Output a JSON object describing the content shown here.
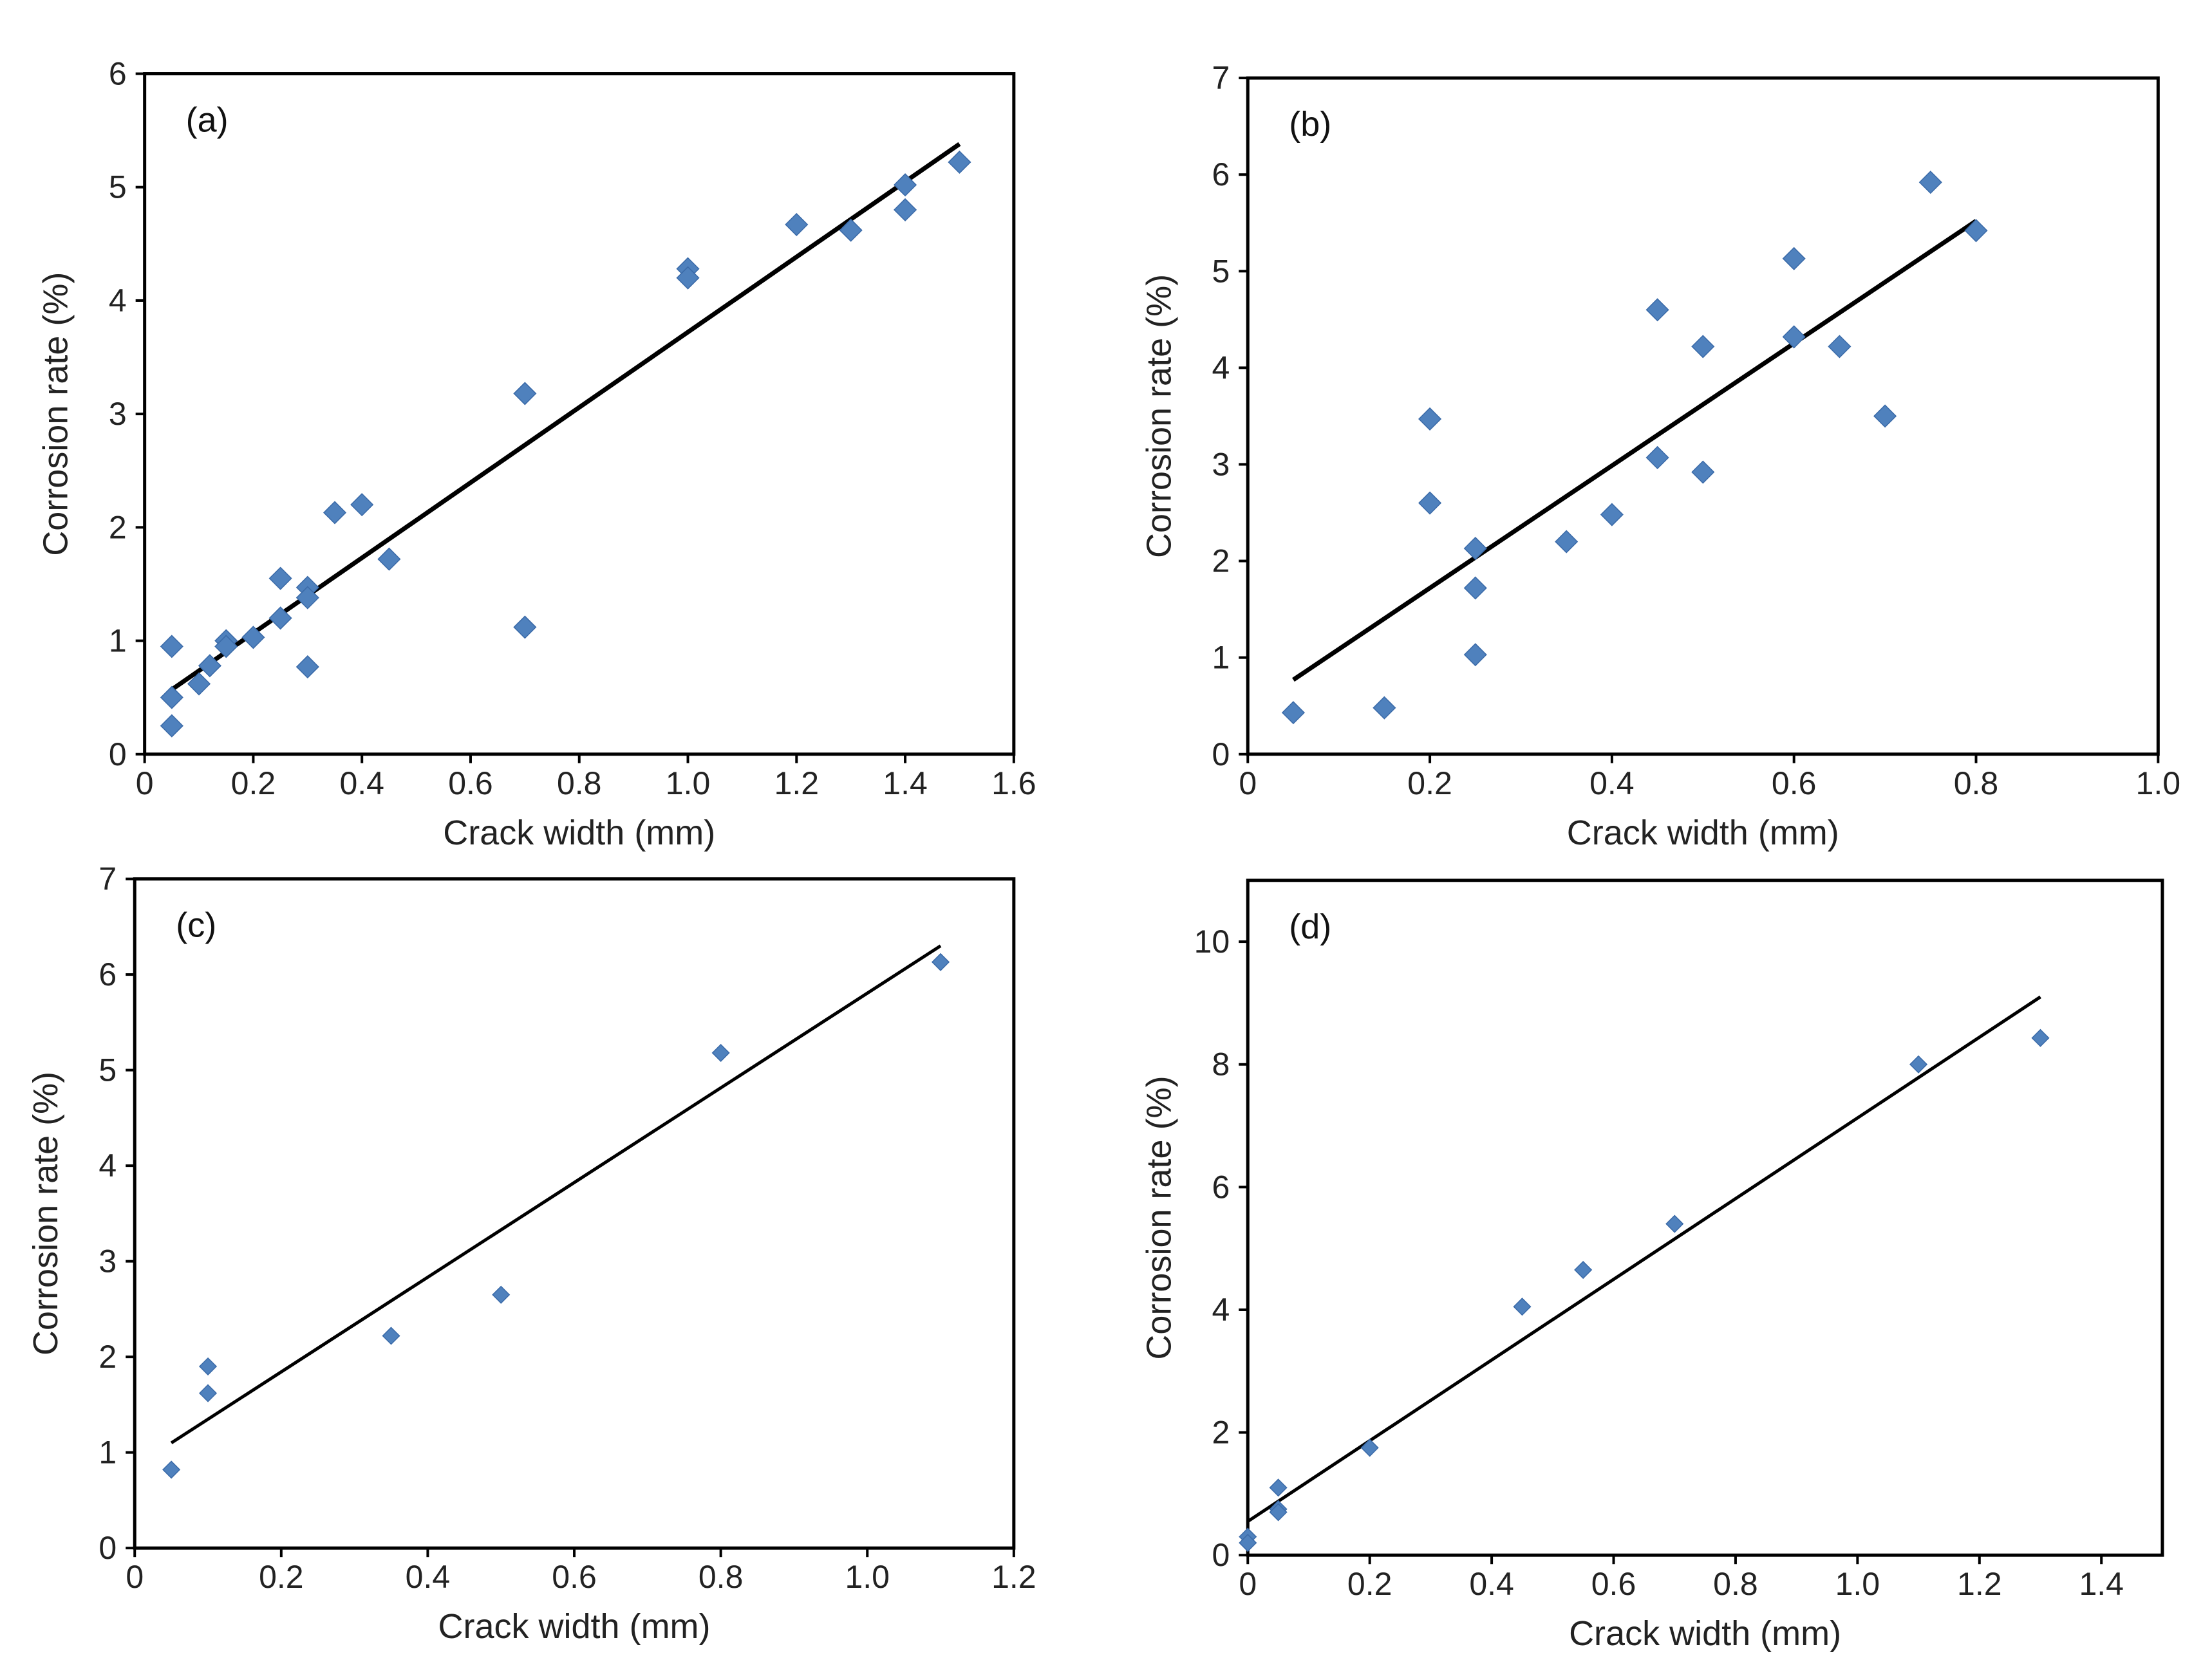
{
  "chart_data": [
    {
      "type": "scatter",
      "panel_label": "(a)",
      "xlabel": "Crack width (mm)",
      "ylabel": "Corrosion rate (%)",
      "xlim": [
        0,
        1.6
      ],
      "ylim": [
        0,
        6
      ],
      "xticks": [
        0,
        0.2,
        0.4,
        0.6,
        0.8,
        1.0,
        1.2,
        1.4,
        1.6
      ],
      "xtick_labels": [
        "0",
        "0.2",
        "0.4",
        "0.6",
        "0.8",
        "1.0",
        "1.2",
        "1.4",
        "1.6"
      ],
      "yticks": [
        0,
        1,
        2,
        3,
        4,
        5,
        6
      ],
      "ytick_labels": [
        "0",
        "1",
        "2",
        "3",
        "4",
        "5",
        "6"
      ],
      "points": [
        [
          0.05,
          0.95
        ],
        [
          0.05,
          0.5
        ],
        [
          0.05,
          0.25
        ],
        [
          0.1,
          0.62
        ],
        [
          0.12,
          0.78
        ],
        [
          0.15,
          1.0
        ],
        [
          0.15,
          0.95
        ],
        [
          0.2,
          1.03
        ],
        [
          0.25,
          1.55
        ],
        [
          0.25,
          1.2
        ],
        [
          0.3,
          1.47
        ],
        [
          0.3,
          1.38
        ],
        [
          0.3,
          0.77
        ],
        [
          0.35,
          2.13
        ],
        [
          0.4,
          2.2
        ],
        [
          0.45,
          1.72
        ],
        [
          0.7,
          3.18
        ],
        [
          0.7,
          1.12
        ],
        [
          1.0,
          4.28
        ],
        [
          1.0,
          4.2
        ],
        [
          1.2,
          4.67
        ],
        [
          1.3,
          4.62
        ],
        [
          1.4,
          5.02
        ],
        [
          1.4,
          4.8
        ],
        [
          1.5,
          5.22
        ]
      ],
      "fit_line": [
        [
          0.05,
          0.57
        ],
        [
          1.5,
          5.38
        ]
      ]
    },
    {
      "type": "scatter",
      "panel_label": "(b)",
      "xlabel": "Crack width (mm)",
      "ylabel": "Corrosion rate (%)",
      "xlim": [
        0,
        1.0
      ],
      "ylim": [
        0,
        7
      ],
      "xticks": [
        0,
        0.2,
        0.4,
        0.6,
        0.8,
        1.0
      ],
      "xtick_labels": [
        "0",
        "0.2",
        "0.4",
        "0.6",
        "0.8",
        "1.0"
      ],
      "yticks": [
        0,
        1,
        2,
        3,
        4,
        5,
        6,
        7
      ],
      "ytick_labels": [
        "0",
        "1",
        "2",
        "3",
        "4",
        "5",
        "6",
        "7"
      ],
      "points": [
        [
          0.05,
          0.43
        ],
        [
          0.15,
          0.48
        ],
        [
          0.2,
          3.47
        ],
        [
          0.2,
          2.6
        ],
        [
          0.25,
          2.13
        ],
        [
          0.25,
          1.72
        ],
        [
          0.25,
          1.03
        ],
        [
          0.35,
          2.2
        ],
        [
          0.4,
          2.48
        ],
        [
          0.45,
          4.6
        ],
        [
          0.45,
          3.07
        ],
        [
          0.5,
          4.22
        ],
        [
          0.5,
          2.92
        ],
        [
          0.6,
          5.13
        ],
        [
          0.6,
          4.32
        ],
        [
          0.65,
          4.22
        ],
        [
          0.7,
          3.5
        ],
        [
          0.75,
          5.92
        ],
        [
          0.8,
          5.42
        ]
      ],
      "fit_line": [
        [
          0.05,
          0.77
        ],
        [
          0.8,
          5.52
        ]
      ]
    },
    {
      "type": "scatter",
      "panel_label": "(c)",
      "xlabel": "Crack width (mm)",
      "ylabel": "Corrosion rate (%)",
      "xlim": [
        0,
        1.2
      ],
      "ylim": [
        0,
        7
      ],
      "xticks": [
        0,
        0.2,
        0.4,
        0.6,
        0.8,
        1.0,
        1.2
      ],
      "xtick_labels": [
        "0",
        "0.2",
        "0.4",
        "0.6",
        "0.8",
        "1.0",
        "1.2"
      ],
      "yticks": [
        0,
        1,
        2,
        3,
        4,
        5,
        6,
        7
      ],
      "ytick_labels": [
        "0",
        "1",
        "2",
        "3",
        "4",
        "5",
        "6",
        "7"
      ],
      "points": [
        [
          0.05,
          0.82
        ],
        [
          0.1,
          1.9
        ],
        [
          0.1,
          1.62
        ],
        [
          0.35,
          2.22
        ],
        [
          0.5,
          2.65
        ],
        [
          0.8,
          5.18
        ],
        [
          1.1,
          6.13
        ]
      ],
      "fit_line": [
        [
          0.05,
          1.1
        ],
        [
          1.1,
          6.3
        ]
      ]
    },
    {
      "type": "scatter",
      "panel_label": "(d)",
      "xlabel": "Crack width (mm)",
      "ylabel": "Corrosion rate (%)",
      "xlim": [
        0,
        1.5
      ],
      "ylim": [
        0,
        11
      ],
      "xticks": [
        0,
        0.2,
        0.4,
        0.6,
        0.8,
        1.0,
        1.2,
        1.4
      ],
      "xtick_labels": [
        "0",
        "0.2",
        "0.4",
        "0.6",
        "0.8",
        "1.0",
        "1.2",
        "1.4"
      ],
      "yticks": [
        0,
        2,
        4,
        6,
        8,
        10
      ],
      "ytick_labels": [
        "0",
        "2",
        "4",
        "6",
        "8",
        "10"
      ],
      "points": [
        [
          0,
          0.3
        ],
        [
          0,
          0.2
        ],
        [
          0.05,
          1.1
        ],
        [
          0.05,
          0.75
        ],
        [
          0.05,
          0.7
        ],
        [
          0.2,
          1.75
        ],
        [
          0.45,
          4.05
        ],
        [
          0.55,
          4.65
        ],
        [
          0.7,
          5.4
        ],
        [
          1.1,
          8.0
        ],
        [
          1.3,
          8.43
        ]
      ],
      "fit_line": [
        [
          0,
          0.55
        ],
        [
          1.3,
          9.1
        ]
      ]
    }
  ],
  "colors": {
    "marker": "#4f81bd",
    "line": "#000000",
    "axis": "#000000"
  }
}
